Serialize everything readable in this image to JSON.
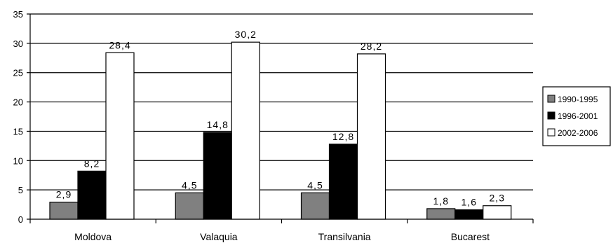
{
  "chart_data": {
    "type": "bar",
    "categories": [
      "Moldova",
      "Valaquia",
      "Transilvania",
      "Bucarest"
    ],
    "series": [
      {
        "name": "1990-1995",
        "values": [
          2.9,
          4.5,
          4.5,
          1.8
        ],
        "labels": [
          "2,9",
          "4,5",
          "4,5",
          "1,8"
        ],
        "color": "#808080"
      },
      {
        "name": "1996-2001",
        "values": [
          8.2,
          14.8,
          12.8,
          1.6
        ],
        "labels": [
          "8,2",
          "14,8",
          "12,8",
          "1,6"
        ],
        "color": "#000000"
      },
      {
        "name": "2002-2006",
        "values": [
          28.4,
          30.2,
          28.2,
          2.3
        ],
        "labels": [
          "28,4",
          "30,2",
          "28,2",
          "2,3"
        ],
        "color": "#ffffff"
      }
    ],
    "ylim": [
      0,
      35
    ],
    "yticks": [
      0,
      5,
      10,
      15,
      20,
      25,
      30,
      35
    ],
    "grid": true,
    "legend": "right"
  }
}
